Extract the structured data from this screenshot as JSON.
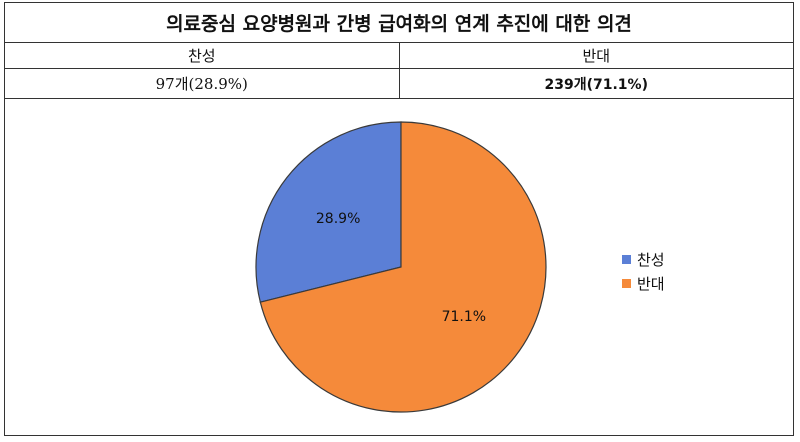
{
  "title": "의료중심 요양병원과 간병 급여화의 연계 추진에 대한 의견",
  "table": {
    "headers": [
      "찬성",
      "반대"
    ],
    "values": [
      "97개(28.9%)",
      "239개(71.1%)"
    ]
  },
  "chart_data": {
    "type": "pie",
    "categories": [
      "찬성",
      "반대"
    ],
    "values": [
      28.9,
      71.1
    ],
    "data_labels": [
      "28.9%",
      "71.1%"
    ],
    "colors": [
      "#5b7fd6",
      "#f58a3a"
    ],
    "legend": {
      "position": "right",
      "entries": [
        "찬성",
        "반대"
      ]
    }
  }
}
